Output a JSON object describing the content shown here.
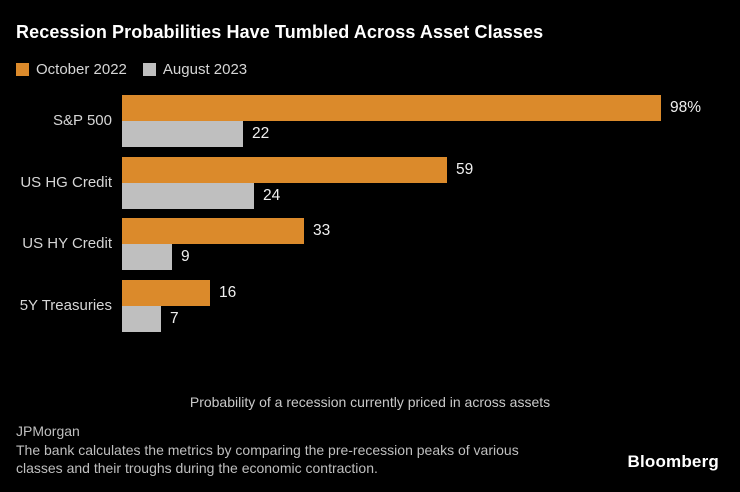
{
  "header": {
    "title": "Recession Probabilities Have Tumbled Across Asset Classes"
  },
  "legend": {
    "items": [
      {
        "label": "October 2022",
        "color": "#DB8A2B"
      },
      {
        "label": "August 2023",
        "color": "#BFBFBF"
      }
    ]
  },
  "chart_data": {
    "type": "bar",
    "orientation": "horizontal",
    "title": "Recession Probabilities Have Tumbled Across Asset Classes",
    "caption": "Probability of a recession currently priced in across assets",
    "categories": [
      "S&P 500",
      "US HG Credit",
      "US HY Credit",
      "5Y Treasuries"
    ],
    "series": [
      {
        "name": "October 2022",
        "color": "#DB8A2B",
        "values": [
          98,
          59,
          33,
          16
        ],
        "labels": [
          "98%",
          "59",
          "33",
          "16"
        ]
      },
      {
        "name": "August 2023",
        "color": "#BFBFBF",
        "values": [
          22,
          24,
          9,
          7
        ],
        "labels": [
          "22",
          "24",
          "9",
          "7"
        ]
      }
    ],
    "xlim": [
      0,
      100
    ],
    "grid": false,
    "legend_position": "top-left",
    "background": "#000000"
  },
  "footer": {
    "source": "JPMorgan",
    "note_lines": [
      "The bank calculates the metrics by comparing the pre-recession peaks of various",
      "classes and their troughs during the economic contraction."
    ],
    "brand": "Bloomberg"
  }
}
